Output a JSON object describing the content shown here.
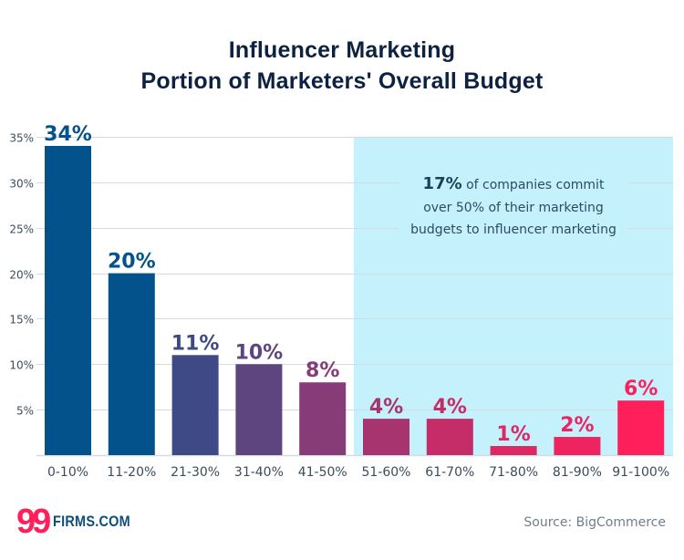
{
  "chart_data": {
    "type": "bar",
    "title": "Influencer Marketing",
    "subtitle": "Portion of Marketers' Overall Budget",
    "xlabel": "",
    "ylabel": "",
    "categories": [
      "0-10%",
      "11-20%",
      "21-30%",
      "31-40%",
      "41-50%",
      "51-60%",
      "61-70%",
      "71-80%",
      "81-90%",
      "91-100%"
    ],
    "values": [
      34,
      20,
      11,
      10,
      8,
      4,
      4,
      1,
      2,
      6
    ],
    "data_labels": [
      "34%",
      "20%",
      "11%",
      "10%",
      "8%",
      "4%",
      "4%",
      "1%",
      "2%",
      "6%"
    ],
    "bar_colors": [
      "#03528c",
      "#04528c",
      "#3d4a85",
      "#5f4580",
      "#873c78",
      "#a8346f",
      "#c42d68",
      "#dd2863",
      "#ef2360",
      "#ff1f5a"
    ],
    "ylim": [
      0,
      35
    ],
    "yticks": [
      5,
      10,
      15,
      20,
      25,
      30,
      35
    ],
    "ytick_labels": [
      "5%",
      "10%",
      "15%",
      "20%",
      "25%",
      "30%",
      "35%"
    ],
    "grid": true,
    "highlight": {
      "range_categories": [
        "51-60%",
        "91-100%"
      ],
      "color": "#c4f1fc",
      "annotation_bold": "17%",
      "annotation_lines": [
        " of companies commit",
        "over 50% of their marketing",
        "budgets to influencer marketing"
      ]
    }
  },
  "header": {
    "title_line1": "Influencer Marketing",
    "title_line2": "Portion of Marketers' Overall Budget"
  },
  "footer": {
    "logo_number": "99",
    "logo_text": "FIRMS.COM",
    "source": "Source: BigCommerce"
  },
  "colors": {
    "title": "#0d2240",
    "axis_text": "#3b4c5c",
    "gridline": "#d3dbe3",
    "brand_pink": "#ff1f5a",
    "brand_blue": "#0c4f7c"
  }
}
